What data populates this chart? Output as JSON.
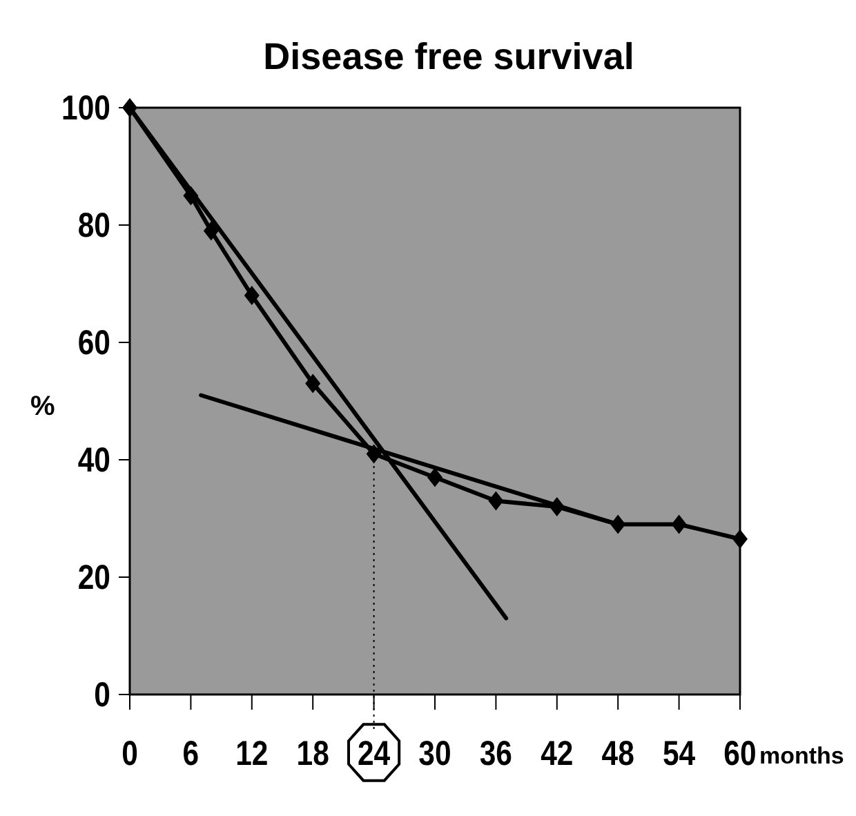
{
  "chart_data": {
    "type": "line",
    "title": "Disease free survival",
    "xlabel": "months",
    "ylabel": "%",
    "xlim": [
      0,
      60
    ],
    "xticks": [
      0,
      6,
      12,
      18,
      24,
      30,
      36,
      42,
      48,
      54,
      60
    ],
    "ylim": [
      0,
      100
    ],
    "yticks": [
      0,
      20,
      40,
      60,
      80,
      100
    ],
    "grid": false,
    "marker": "diamond",
    "line_style": "solid",
    "series": [
      {
        "color": "#000000",
        "x": [
          0,
          6,
          8,
          12,
          18,
          24,
          30,
          36,
          42,
          48,
          54,
          60
        ],
        "values": [
          100,
          85,
          79,
          68,
          53,
          41,
          37,
          33,
          32,
          29,
          29,
          26.5
        ]
      },
      {
        "type": "line",
        "marker": "none",
        "color": "#000000",
        "x": [
          0,
          37
        ],
        "values": [
          100,
          13
        ]
      },
      {
        "type": "line",
        "marker": "none",
        "color": "#000000",
        "x": [
          7,
          48
        ],
        "values": [
          51,
          29
        ]
      }
    ],
    "ref_lines": [
      {
        "axis": "x",
        "value": 24,
        "line_style": "dotted",
        "color": "#000000"
      }
    ]
  }
}
